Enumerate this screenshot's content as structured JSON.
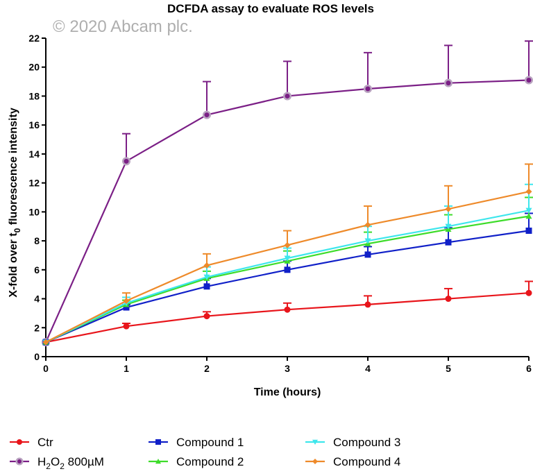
{
  "watermark": "© 2020 Abcam plc.",
  "chart_data": {
    "type": "line",
    "title": "DCFDA assay to evaluate ROS levels",
    "xlabel": "Time (hours)",
    "ylabel_main": "X-fold over t",
    "ylabel_sub": "0",
    "ylabel_tail": " fluorescence intensity",
    "xlim": [
      0,
      6
    ],
    "ylim": [
      0,
      22
    ],
    "xticks": [
      0,
      1,
      2,
      3,
      4,
      5,
      6
    ],
    "yticks": [
      0,
      2,
      4,
      6,
      8,
      10,
      12,
      14,
      16,
      18,
      20,
      22
    ],
    "grid": false,
    "legend_placement": "bottom",
    "x": [
      0,
      1,
      2,
      3,
      4,
      5,
      6
    ],
    "series": [
      {
        "name": "Ctr",
        "color": "#e8151b",
        "marker": "circle",
        "values": [
          1,
          2.1,
          2.8,
          3.25,
          3.6,
          4.0,
          4.4
        ],
        "error_upper": [
          1,
          2.3,
          3.1,
          3.7,
          4.2,
          4.7,
          5.2
        ]
      },
      {
        "name": "H2O2 800µM",
        "name_parts": [
          "H",
          "2",
          "O",
          "2",
          " 800µM"
        ],
        "color": "#7b1f86",
        "marker": "circle-halo",
        "values": [
          1,
          13.5,
          16.7,
          18.0,
          18.5,
          18.9,
          19.1
        ],
        "error_upper": [
          1,
          15.4,
          19.0,
          20.4,
          21.0,
          21.5,
          21.8
        ]
      },
      {
        "name": "Compound 1",
        "color": "#1020c8",
        "marker": "square",
        "values": [
          1,
          3.4,
          4.85,
          6.0,
          7.05,
          7.9,
          8.7
        ],
        "error_upper": [
          1,
          3.6,
          5.4,
          6.6,
          7.6,
          8.9,
          9.9
        ]
      },
      {
        "name": "Compound 2",
        "color": "#3ddc2a",
        "marker": "triangle-up",
        "values": [
          1,
          3.6,
          5.4,
          6.6,
          7.8,
          8.8,
          9.7
        ],
        "error_upper": [
          1,
          3.9,
          5.9,
          7.3,
          8.6,
          9.8,
          11.0
        ]
      },
      {
        "name": "Compound 3",
        "color": "#3ee6ec",
        "marker": "triangle-down",
        "values": [
          1,
          3.7,
          5.5,
          6.8,
          8.0,
          9.0,
          10.1
        ],
        "error_upper": [
          1,
          4.1,
          6.2,
          7.5,
          9.0,
          10.4,
          11.9
        ]
      },
      {
        "name": "Compound 4",
        "color": "#ee8a2a",
        "marker": "diamond",
        "values": [
          1,
          3.85,
          6.3,
          7.7,
          9.1,
          10.2,
          11.4
        ],
        "error_upper": [
          1,
          4.4,
          7.1,
          8.7,
          10.4,
          11.8,
          13.3
        ]
      }
    ]
  }
}
